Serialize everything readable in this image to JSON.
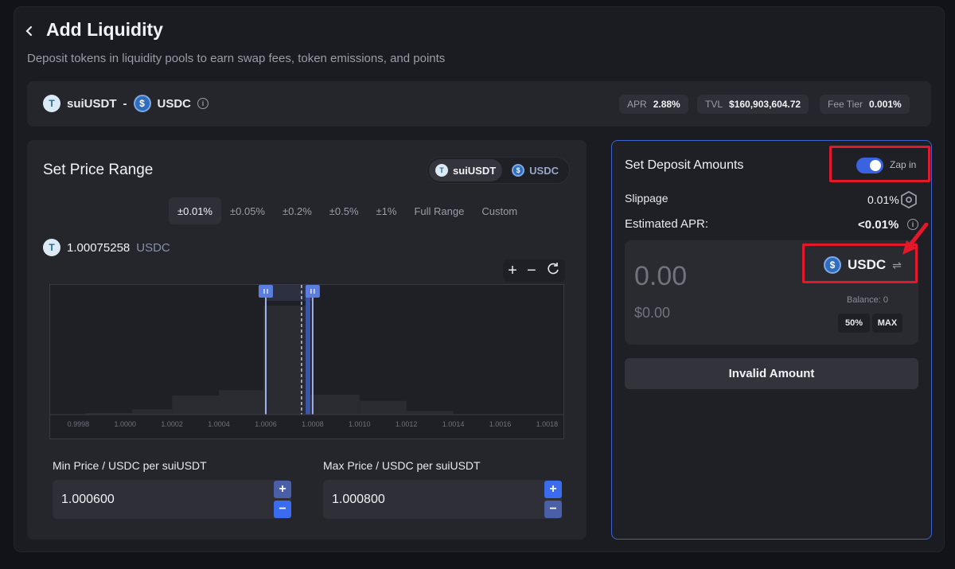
{
  "header": {
    "title": "Add Liquidity",
    "subtitle": "Deposit tokens in liquidity pools to earn swap fees, token emissions, and points"
  },
  "pair": {
    "token_a": "suiUSDT",
    "separator": "-",
    "token_b": "USDC",
    "stats": [
      {
        "key": "APR",
        "value": "2.88%"
      },
      {
        "key": "TVL",
        "value": "$160,903,604.72"
      },
      {
        "key": "Fee Tier",
        "value": "0.001%"
      }
    ]
  },
  "price_range": {
    "title": "Set Price Range",
    "token_toggle": [
      "suiUSDT",
      "USDC"
    ],
    "selected_token": "suiUSDT",
    "ranges": [
      "±0.01%",
      "±0.05%",
      "±0.2%",
      "±0.5%",
      "±1%",
      "Full Range",
      "Custom"
    ],
    "selected_range": "±0.01%",
    "current_price": "1.00075258",
    "current_price_unit": "USDC",
    "zoom_in": "+",
    "zoom_out": "−",
    "min_label": "Min Price / USDC per suiUSDT",
    "min_value": "1.000600",
    "max_label": "Max Price / USDC per suiUSDT",
    "max_value": "1.000800"
  },
  "chart_data": {
    "type": "bar",
    "x_ticks": [
      "0.9998",
      "1.0000",
      "1.0002",
      "1.0004",
      "1.0006",
      "1.0008",
      "1.0010",
      "1.0012",
      "1.0014",
      "1.0016",
      "1.0018"
    ],
    "x_tick_values": [
      0.9998,
      1.0,
      1.0002,
      1.0004,
      1.0006,
      1.0008,
      1.001,
      1.0012,
      1.0014,
      1.0016,
      1.0018
    ],
    "xlim": [
      0.99968,
      1.00187
    ],
    "bins": [
      {
        "from": 0.99983,
        "to": 1.00003,
        "liquidity": 2
      },
      {
        "from": 1.00003,
        "to": 1.0002,
        "liquidity": 7
      },
      {
        "from": 1.0002,
        "to": 1.0004,
        "liquidity": 25
      },
      {
        "from": 1.0004,
        "to": 1.00059,
        "liquidity": 32
      },
      {
        "from": 1.00059,
        "to": 1.00077,
        "liquidity": 143
      },
      {
        "from": 1.00077,
        "to": 1.00079,
        "liquidity": 168
      },
      {
        "from": 1.00079,
        "to": 1.001,
        "liquidity": 26
      },
      {
        "from": 1.001,
        "to": 1.0012,
        "liquidity": 18
      },
      {
        "from": 1.0012,
        "to": 1.0014,
        "liquidity": 5
      }
    ],
    "ylim": [
      0,
      168
    ],
    "range_min": 1.0006,
    "range_max": 1.0008,
    "current_price": 1.00075258
  },
  "deposit": {
    "title": "Set Deposit Amounts",
    "zap_label": "Zap in",
    "zap_enabled": true,
    "slippage_label": "Slippage",
    "slippage_value": "0.01%",
    "apr_label": "Estimated APR:",
    "apr_value": "<0.01%",
    "amount": "0.00",
    "usd_value": "$0.00",
    "token": "USDC",
    "balance": "Balance: 0",
    "pct_button": "50%",
    "max_button": "MAX",
    "submit_label": "Invalid Amount"
  },
  "colors": {
    "accent": "#3b63e0",
    "range_fill": "#3a56a8",
    "highlight": "#e5172b"
  }
}
